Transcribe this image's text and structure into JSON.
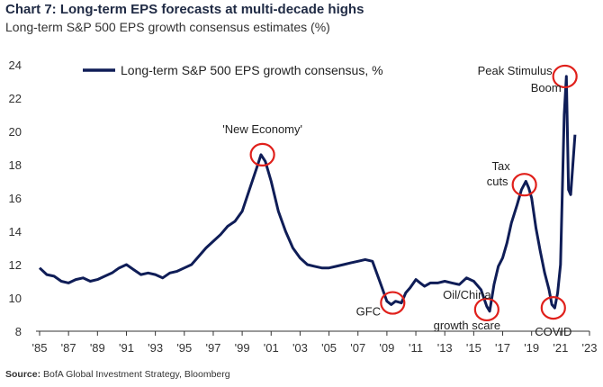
{
  "header": {
    "title": "Chart 7: Long-term EPS forecasts at multi-decade highs",
    "subtitle": "Long-term S&P 500 EPS growth consensus estimates (%)"
  },
  "footer": {
    "source_label": "Source:",
    "source_text": "BofA Global Investment Strategy, Bloomberg"
  },
  "colors": {
    "line": "#0f1d57",
    "highlight": "#e0201b"
  },
  "chart_data": {
    "type": "line",
    "title": "Long-term S&P 500 EPS growth consensus estimates (%)",
    "xlabel": "",
    "ylabel": "",
    "xlim": [
      1985,
      2023
    ],
    "ylim": [
      8,
      24
    ],
    "x_ticks": [
      1985,
      1987,
      1989,
      1991,
      1993,
      1995,
      1997,
      1999,
      2001,
      2003,
      2005,
      2007,
      2009,
      2011,
      2013,
      2015,
      2017,
      2019,
      2021,
      2023
    ],
    "x_tick_labels": [
      "'85",
      "'87",
      "'89",
      "'91",
      "'93",
      "'95",
      "'97",
      "'99",
      "'01",
      "'03",
      "'05",
      "'07",
      "'09",
      "'11",
      "'13",
      "'15",
      "'17",
      "'19",
      "'21",
      "'23"
    ],
    "y_ticks": [
      8,
      10,
      12,
      14,
      16,
      18,
      20,
      22,
      24
    ],
    "y_tick_labels": [
      "8",
      "10",
      "12",
      "14",
      "16",
      "18",
      "20",
      "22",
      "24"
    ],
    "legend": {
      "label": "Long-term S&P 500 EPS growth consensus, %",
      "position": "top-left"
    },
    "series": [
      {
        "name": "Long-term S&P 500 EPS growth consensus, %",
        "x": [
          1985.0,
          1985.5,
          1986.0,
          1986.5,
          1987.0,
          1987.5,
          1988.0,
          1988.5,
          1989.0,
          1989.5,
          1990.0,
          1990.5,
          1991.0,
          1991.5,
          1992.0,
          1992.5,
          1993.0,
          1993.5,
          1994.0,
          1994.5,
          1995.0,
          1995.5,
          1996.0,
          1996.5,
          1997.0,
          1997.5,
          1998.0,
          1998.5,
          1999.0,
          1999.5,
          2000.0,
          2000.3,
          2000.6,
          2001.0,
          2001.5,
          2002.0,
          2002.5,
          2003.0,
          2003.5,
          2004.0,
          2004.5,
          2005.0,
          2005.5,
          2006.0,
          2006.5,
          2007.0,
          2007.5,
          2008.0,
          2008.5,
          2009.0,
          2009.3,
          2009.6,
          2010.0,
          2010.3,
          2010.6,
          2011.0,
          2011.3,
          2011.6,
          2012.0,
          2012.5,
          2013.0,
          2013.5,
          2014.0,
          2014.5,
          2015.0,
          2015.5,
          2015.9,
          2016.1,
          2016.4,
          2016.7,
          2017.0,
          2017.3,
          2017.6,
          2018.0,
          2018.3,
          2018.6,
          2018.8,
          2019.0,
          2019.3,
          2019.6,
          2019.9,
          2020.2,
          2020.4,
          2020.6,
          2020.8,
          2021.0,
          2021.1,
          2021.25,
          2021.4,
          2021.55,
          2021.7,
          2021.85,
          2022.0
        ],
        "values": [
          11.8,
          11.4,
          11.3,
          11.0,
          10.9,
          11.1,
          11.2,
          11.0,
          11.1,
          11.3,
          11.5,
          11.8,
          12.0,
          11.7,
          11.4,
          11.5,
          11.4,
          11.2,
          11.5,
          11.6,
          11.8,
          12.0,
          12.5,
          13.0,
          13.4,
          13.8,
          14.3,
          14.6,
          15.2,
          16.5,
          17.8,
          18.6,
          18.2,
          17.0,
          15.2,
          14.0,
          13.0,
          12.4,
          12.0,
          11.9,
          11.8,
          11.8,
          11.9,
          12.0,
          12.1,
          12.2,
          12.3,
          12.2,
          11.0,
          9.8,
          9.6,
          9.8,
          9.7,
          10.3,
          10.6,
          11.1,
          10.9,
          10.7,
          10.9,
          10.9,
          11.0,
          10.9,
          10.8,
          11.2,
          11.0,
          10.5,
          9.5,
          9.2,
          10.8,
          11.9,
          12.4,
          13.3,
          14.5,
          15.6,
          16.5,
          17.0,
          16.6,
          16.0,
          14.2,
          12.8,
          11.5,
          10.5,
          9.6,
          9.4,
          10.3,
          12.0,
          15.5,
          21.0,
          23.3,
          16.5,
          16.2,
          18.0,
          19.8
        ]
      }
    ],
    "annotations": [
      {
        "label": "'New Economy'",
        "x": 2000.4,
        "y": 18.6
      },
      {
        "label": "GFC",
        "x": 2009.4,
        "y": 9.7
      },
      {
        "label": "Oil/China",
        "label2": "growth scare",
        "x": 2015.9,
        "y": 9.3
      },
      {
        "label": "Tax",
        "label2": "cuts",
        "x": 2018.5,
        "y": 16.8
      },
      {
        "label": "COVID",
        "x": 2020.5,
        "y": 9.4
      },
      {
        "label": "Peak Stimulus",
        "label2": "Boom",
        "x": 2021.3,
        "y": 23.3
      }
    ]
  }
}
